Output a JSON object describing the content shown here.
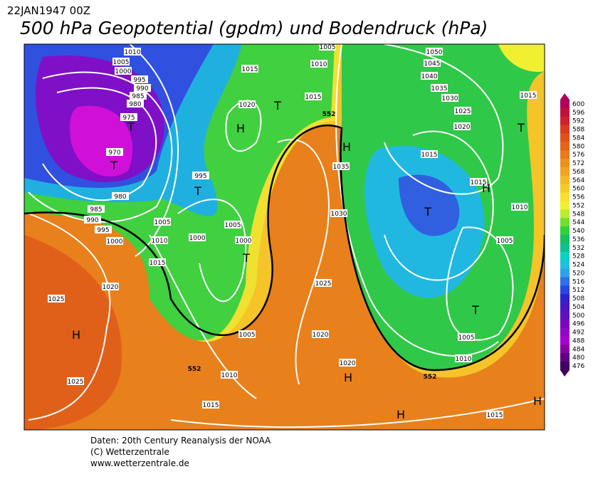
{
  "header": {
    "date": "22JAN1947 00Z",
    "title": "500 hPa Geopotential (gpdm) und Bodendruck (hPa)"
  },
  "colorbar": {
    "ticks": [
      600,
      596,
      592,
      588,
      584,
      580,
      576,
      572,
      568,
      564,
      560,
      556,
      552,
      548,
      544,
      540,
      536,
      532,
      528,
      524,
      520,
      516,
      512,
      508,
      504,
      500,
      496,
      492,
      488,
      484,
      480,
      476
    ],
    "colors": [
      "#b0005a",
      "#c0103c",
      "#d0202a",
      "#dc3a1c",
      "#e2501a",
      "#e66418",
      "#ea7a1a",
      "#ee901c",
      "#f2a420",
      "#f6b824",
      "#f8cc28",
      "#f8e02c",
      "#f0f030",
      "#b8ec30",
      "#70e030",
      "#30d040",
      "#18c060",
      "#10c090",
      "#10d0c0",
      "#20c0e0",
      "#30a0ec",
      "#3070e8",
      "#2848e0",
      "#3020d0",
      "#4818c8",
      "#6010c0",
      "#7808c0",
      "#9008c8",
      "#a800d0",
      "#8800a0",
      "#600080",
      "#400060"
    ]
  },
  "map": {
    "isobar_labels": [
      1010,
      1005,
      1000,
      995,
      990,
      985,
      980,
      975,
      970,
      980,
      985,
      990,
      995,
      1000,
      1005,
      1010,
      1015,
      1020,
      1025,
      1025,
      995,
      1000,
      1005,
      1000,
      1005,
      1010,
      1015,
      1020,
      1015,
      1005,
      1010,
      1015,
      1035,
      1030,
      1025,
      1020,
      1020,
      1050,
      1045,
      1040,
      1035,
      1030,
      1025,
      1020,
      1015,
      1015,
      1015,
      1010,
      1005,
      1005,
      1010,
      1015
    ],
    "contour_labels": [
      552,
      552,
      552
    ],
    "centers": [
      "T",
      "T",
      "H",
      "T",
      "T",
      "T",
      "H",
      "H",
      "H",
      "H",
      "T",
      "H",
      "T",
      "T",
      "H"
    ]
  },
  "footer": {
    "lines": [
      "Daten: 20th Century Reanalysis der NOAA",
      "(C) Wetterzentrale",
      "www.wetterzentrale.de"
    ]
  }
}
